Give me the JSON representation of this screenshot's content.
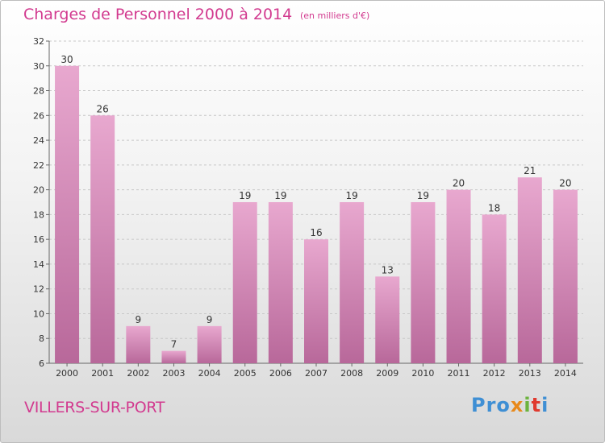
{
  "title": "Charges de Personnel 2000 à 2014",
  "subtitle": "(en milliers d'€)",
  "commune": "VILLERS-SUR-PORT",
  "logo": {
    "p1": "Pro",
    "p2": "x",
    "p3": "i",
    "p4": "t",
    "p5": "i"
  },
  "colors": {
    "bar_top": "#e8a8cf",
    "bar_bottom": "#b8689a",
    "text_accent": "#d23a8f"
  },
  "chart_data": {
    "type": "bar",
    "title": "Charges de Personnel 2000 à 2014",
    "subtitle": "(en milliers d'€)",
    "categories": [
      "2000",
      "2001",
      "2002",
      "2003",
      "2004",
      "2005",
      "2006",
      "2007",
      "2008",
      "2009",
      "2010",
      "2011",
      "2012",
      "2013",
      "2014"
    ],
    "values": [
      30,
      26,
      9,
      7,
      9,
      19,
      19,
      16,
      19,
      13,
      19,
      20,
      18,
      21,
      20
    ],
    "yticks": [
      6,
      8,
      10,
      12,
      14,
      16,
      18,
      20,
      22,
      24,
      26,
      28,
      30,
      32
    ],
    "ylim": [
      6,
      32
    ],
    "grid": "horizontal dashed"
  }
}
